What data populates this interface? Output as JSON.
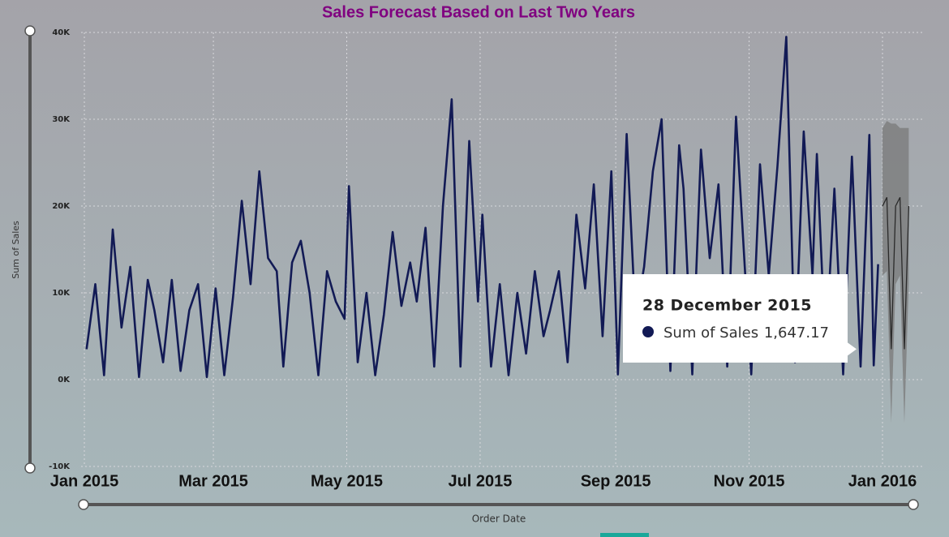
{
  "chart_data": {
    "type": "line",
    "title": "Sales Forecast Based on Last Two Years",
    "x_label": "Order Date",
    "y_label": "Sum of Sales",
    "grid": true,
    "ylim": [
      -10000,
      40000
    ],
    "yticks": [
      {
        "value": 40000,
        "label": "40K"
      },
      {
        "value": 30000,
        "label": "30K"
      },
      {
        "value": 20000,
        "label": "20K"
      },
      {
        "value": 10000,
        "label": "10K"
      },
      {
        "value": 0,
        "label": "0K"
      },
      {
        "value": -10000,
        "label": "-10K"
      }
    ],
    "xticks": [
      {
        "value": "2015-01",
        "label": "Jan 2015"
      },
      {
        "value": "2015-03",
        "label": "Mar 2015"
      },
      {
        "value": "2015-05",
        "label": "May 2015"
      },
      {
        "value": "2015-07",
        "label": "Jul 2015"
      },
      {
        "value": "2015-09",
        "label": "Sep 2015"
      },
      {
        "value": "2015-11",
        "label": "Nov 2015"
      },
      {
        "value": "2016-01",
        "label": "Jan 2016"
      }
    ],
    "x": [
      "2015-01-02",
      "2015-01-06",
      "2015-01-10",
      "2015-01-14",
      "2015-01-18",
      "2015-01-22",
      "2015-01-26",
      "2015-01-30",
      "2015-02-02",
      "2015-02-06",
      "2015-02-10",
      "2015-02-14",
      "2015-02-18",
      "2015-02-22",
      "2015-02-26",
      "2015-03-02",
      "2015-03-06",
      "2015-03-10",
      "2015-03-14",
      "2015-03-18",
      "2015-03-22",
      "2015-03-26",
      "2015-03-30",
      "2015-04-02",
      "2015-04-06",
      "2015-04-10",
      "2015-04-14",
      "2015-04-18",
      "2015-04-22",
      "2015-04-26",
      "2015-04-30",
      "2015-05-02",
      "2015-05-06",
      "2015-05-10",
      "2015-05-14",
      "2015-05-18",
      "2015-05-22",
      "2015-05-26",
      "2015-05-30",
      "2015-06-02",
      "2015-06-06",
      "2015-06-10",
      "2015-06-14",
      "2015-06-18",
      "2015-06-22",
      "2015-06-26",
      "2015-06-30",
      "2015-07-02",
      "2015-07-06",
      "2015-07-10",
      "2015-07-14",
      "2015-07-18",
      "2015-07-22",
      "2015-07-26",
      "2015-07-30",
      "2015-08-02",
      "2015-08-06",
      "2015-08-10",
      "2015-08-14",
      "2015-08-18",
      "2015-08-22",
      "2015-08-26",
      "2015-08-30",
      "2015-09-02",
      "2015-09-06",
      "2015-09-10",
      "2015-09-14",
      "2015-09-18",
      "2015-09-22",
      "2015-09-26",
      "2015-09-30",
      "2015-10-02",
      "2015-10-06",
      "2015-10-10",
      "2015-10-14",
      "2015-10-18",
      "2015-10-22",
      "2015-10-26",
      "2015-10-30",
      "2015-11-02",
      "2015-11-06",
      "2015-11-10",
      "2015-11-14",
      "2015-11-18",
      "2015-11-22",
      "2015-11-26",
      "2015-11-30",
      "2015-12-02",
      "2015-12-06",
      "2015-12-10",
      "2015-12-14",
      "2015-12-18",
      "2015-12-22",
      "2015-12-26",
      "2015-12-28",
      "2015-12-30"
    ],
    "series": [
      {
        "name": "Sum of Sales",
        "color": "#121a55",
        "values": [
          3500,
          11000,
          500,
          17300,
          6000,
          13000,
          300,
          11500,
          8000,
          2000,
          11500,
          1000,
          8000,
          11000,
          300,
          10500,
          500,
          9500,
          20600,
          11000,
          24000,
          14000,
          12500,
          1500,
          13500,
          16000,
          10000,
          500,
          12500,
          9000,
          7000,
          22300,
          2000,
          10000,
          500,
          7500,
          17000,
          8500,
          13500,
          9000,
          17500,
          1500,
          20000,
          32300,
          1500,
          27500,
          9000,
          19000,
          1500,
          11000,
          500,
          10000,
          3000,
          12500,
          5000,
          8000,
          12500,
          2000,
          19000,
          10500,
          22500,
          5000,
          24000,
          600,
          28300,
          7000,
          13000,
          24000,
          30000,
          1000,
          27000,
          22000,
          600,
          26500,
          14000,
          22500,
          1500,
          30300,
          13000,
          600,
          24800,
          12000,
          24700,
          39500,
          2000,
          28600,
          12000,
          26000,
          3000,
          22000,
          600,
          25700,
          1500,
          28200,
          1647.17,
          13300
        ]
      }
    ],
    "forecast": {
      "color": "#2a2a2a",
      "band_color": "#7a7a7a",
      "x": [
        "2016-01-01",
        "2016-01-03",
        "2016-01-05",
        "2016-01-07",
        "2016-01-09",
        "2016-01-11",
        "2016-01-13"
      ],
      "values": [
        20000,
        21000,
        3500,
        20000,
        21000,
        3500,
        20000
      ],
      "lower": [
        12000,
        12500,
        -5000,
        11000,
        12000,
        -5000,
        11000
      ],
      "upper": [
        29000,
        29800,
        29500,
        29500,
        29000,
        29000,
        29000
      ]
    },
    "tooltip": {
      "title": "28 December 2015",
      "label": "Sum of Sales",
      "value": 1647.17,
      "value_label": "1,647.17"
    }
  }
}
